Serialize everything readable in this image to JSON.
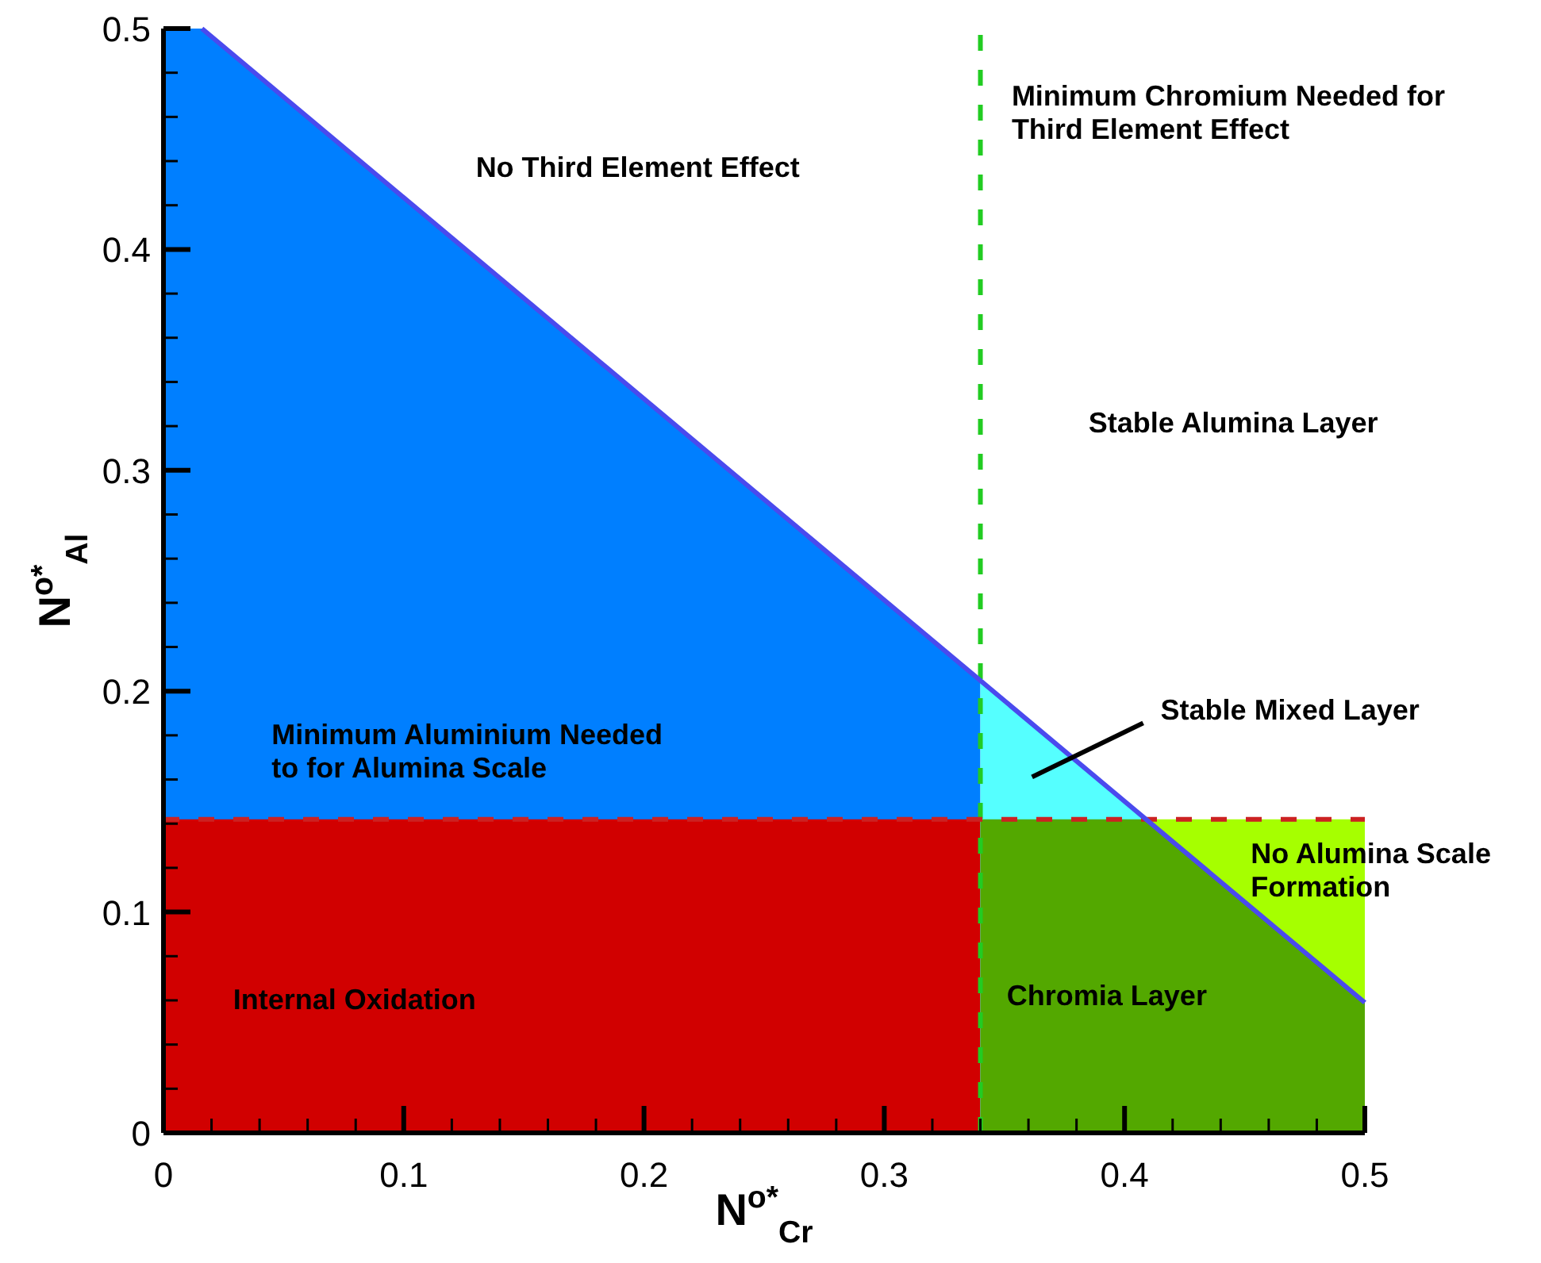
{
  "chart_data": {
    "type": "area",
    "xlabel": "N$^{o*}$$_{Cr}$",
    "ylabel": "N$^{o*}$$_{Al}$",
    "xlim": [
      0,
      0.5
    ],
    "ylim": [
      0,
      0.5
    ],
    "xticks": [
      0,
      {
        "value": 0.02,
        "label": null
      },
      {
        "value": 0.04,
        "label": null
      },
      {
        "value": 0.06,
        "label": null
      },
      {
        "value": 0.08,
        "label": null
      },
      0.1,
      {
        "value": 0.12,
        "label": null
      },
      {
        "value": 0.14,
        "label": null
      },
      {
        "value": 0.16,
        "label": null
      },
      {
        "value": 0.18,
        "label": null
      },
      0.2,
      {
        "value": 0.22,
        "label": null
      },
      {
        "value": 0.24,
        "label": null
      },
      {
        "value": 0.26,
        "label": null
      },
      {
        "value": 0.28,
        "label": null
      },
      0.3,
      {
        "value": 0.32,
        "label": null
      },
      {
        "value": 0.34,
        "label": null
      },
      {
        "value": 0.36,
        "label": null
      },
      {
        "value": 0.38,
        "label": null
      },
      0.4,
      {
        "value": 0.42,
        "label": null
      },
      {
        "value": 0.44,
        "label": null
      },
      {
        "value": 0.46,
        "label": null
      },
      {
        "value": 0.48,
        "label": null
      },
      0.5
    ],
    "yticks": [
      0,
      {
        "value": 0.02,
        "label": null
      },
      {
        "value": 0.04,
        "label": null
      },
      {
        "value": 0.06,
        "label": null
      },
      {
        "value": 0.08,
        "label": null
      },
      0.1,
      {
        "value": 0.12,
        "label": null
      },
      {
        "value": 0.14,
        "label": null
      },
      {
        "value": 0.16,
        "label": null
      },
      {
        "value": 0.18,
        "label": null
      },
      0.2,
      {
        "value": 0.22,
        "label": null
      },
      {
        "value": 0.24,
        "label": null
      },
      {
        "value": 0.26,
        "label": null
      },
      {
        "value": 0.28,
        "label": null
      },
      0.3,
      {
        "value": 0.32,
        "label": null
      },
      {
        "value": 0.34,
        "label": null
      },
      {
        "value": 0.36,
        "label": null
      },
      {
        "value": 0.38,
        "label": null
      },
      0.4,
      {
        "value": 0.42,
        "label": null
      },
      {
        "value": 0.44,
        "label": null
      },
      {
        "value": 0.46,
        "label": null
      },
      {
        "value": 0.48,
        "label": null
      },
      0.5
    ],
    "series": [
      {
        "color": "#007fff",
        "x": [
          0,
          0.016,
          0.34
        ],
        "values": [
          0.5,
          0.5,
          0.205
        ]
      },
      {
        "color": "#d10000",
        "x": [
          0,
          0.34
        ],
        "values": [
          0.142,
          0.142
        ]
      },
      {
        "color": "#55ffff",
        "x": [
          0.34,
          0.409
        ],
        "values": [
          0.205,
          0.142
        ]
      },
      {
        "color": "#a6ff00",
        "x": [
          0.409,
          0.5
        ],
        "values": [
          0.142,
          0.142
        ]
      },
      {
        "color": "#53a800",
        "x": [
          0.34,
          0.409,
          0.5
        ],
        "values": [
          0.142,
          0.142,
          0.059
        ]
      },
      {
        "type": "line",
        "color": "#4a4aee",
        "x": [
          0.016,
          0.5
        ],
        "values": [
          0.5,
          0.059
        ]
      }
    ],
    "ref_lines": [
      {
        "axis": "x",
        "value": 0.34,
        "color": "#22cc22",
        "line_style": "dashed"
      },
      {
        "axis": "y",
        "value": 0.142,
        "color": "#cc2222",
        "line_style": "dashed"
      }
    ],
    "annotations": [
      "No Third Element Effect",
      "Minimum Chromium Needed for\nThird Element Effect",
      "Stable Alumina Layer",
      "Minimum Aluminium Needed\nto for Alumina Scale",
      "Stable Mixed Layer",
      "No Alumina Scale\nFormation",
      "Internal Oxidation",
      "Chromia Layer"
    ]
  }
}
